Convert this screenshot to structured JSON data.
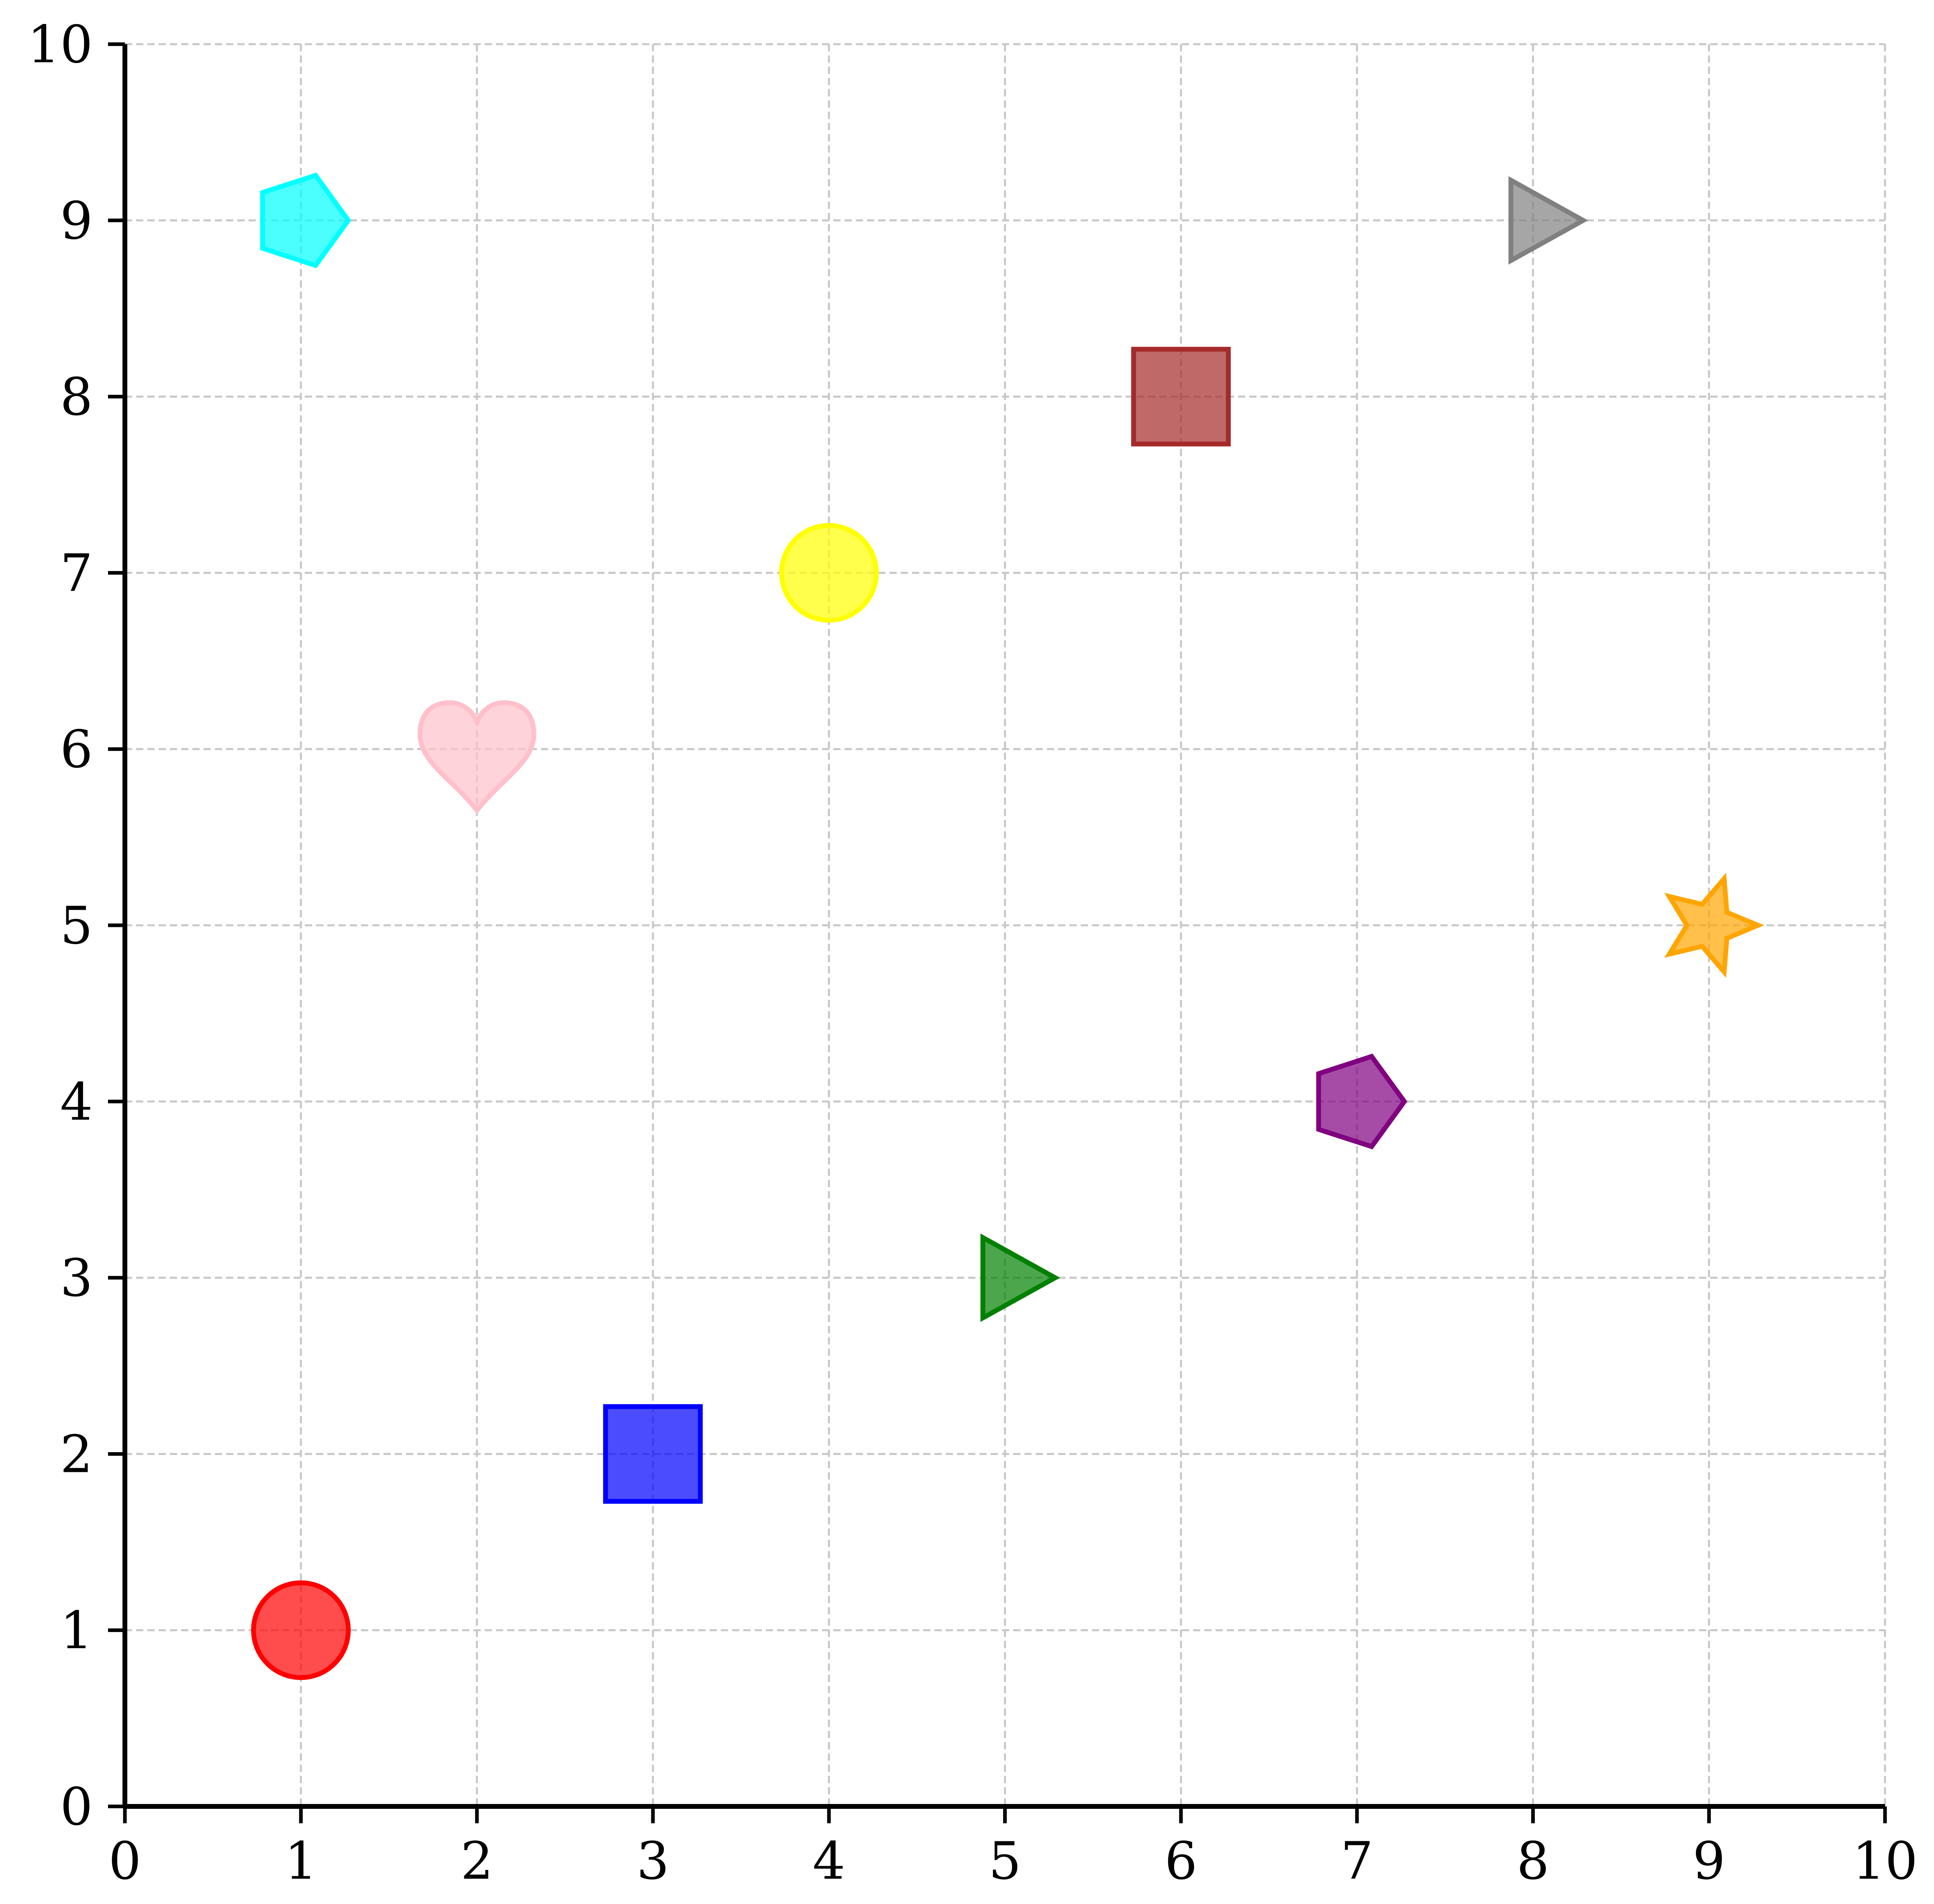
{
  "chart_data": {
    "type": "scatter",
    "title": "",
    "xlabel": "",
    "ylabel": "",
    "xlim": [
      0,
      10
    ],
    "ylim": [
      0,
      10
    ],
    "grid": true,
    "x_ticks": [
      "0",
      "1",
      "2",
      "3",
      "4",
      "5",
      "6",
      "7",
      "8",
      "9",
      "10"
    ],
    "y_ticks": [
      "0",
      "1",
      "2",
      "3",
      "4",
      "5",
      "6",
      "7",
      "8",
      "9",
      "10"
    ],
    "points": [
      {
        "x": 1,
        "y": 1,
        "shape": "circle",
        "color": "#ff0000"
      },
      {
        "x": 3,
        "y": 2,
        "shape": "square",
        "color": "#0000ff"
      },
      {
        "x": 5,
        "y": 3,
        "shape": "triangle",
        "color": "#008000"
      },
      {
        "x": 7,
        "y": 4,
        "shape": "pentagon",
        "color": "#800080"
      },
      {
        "x": 9,
        "y": 5,
        "shape": "star",
        "color": "#ffa500"
      },
      {
        "x": 2,
        "y": 6,
        "shape": "heart",
        "color": "#ffc0cb"
      },
      {
        "x": 4,
        "y": 7,
        "shape": "circle",
        "color": "#ffff00"
      },
      {
        "x": 6,
        "y": 8,
        "shape": "square",
        "color": "#a52a2a"
      },
      {
        "x": 8,
        "y": 9,
        "shape": "triangle",
        "color": "#808080"
      },
      {
        "x": 1,
        "y": 9,
        "shape": "pentagon",
        "color": "#00ffff"
      }
    ]
  }
}
